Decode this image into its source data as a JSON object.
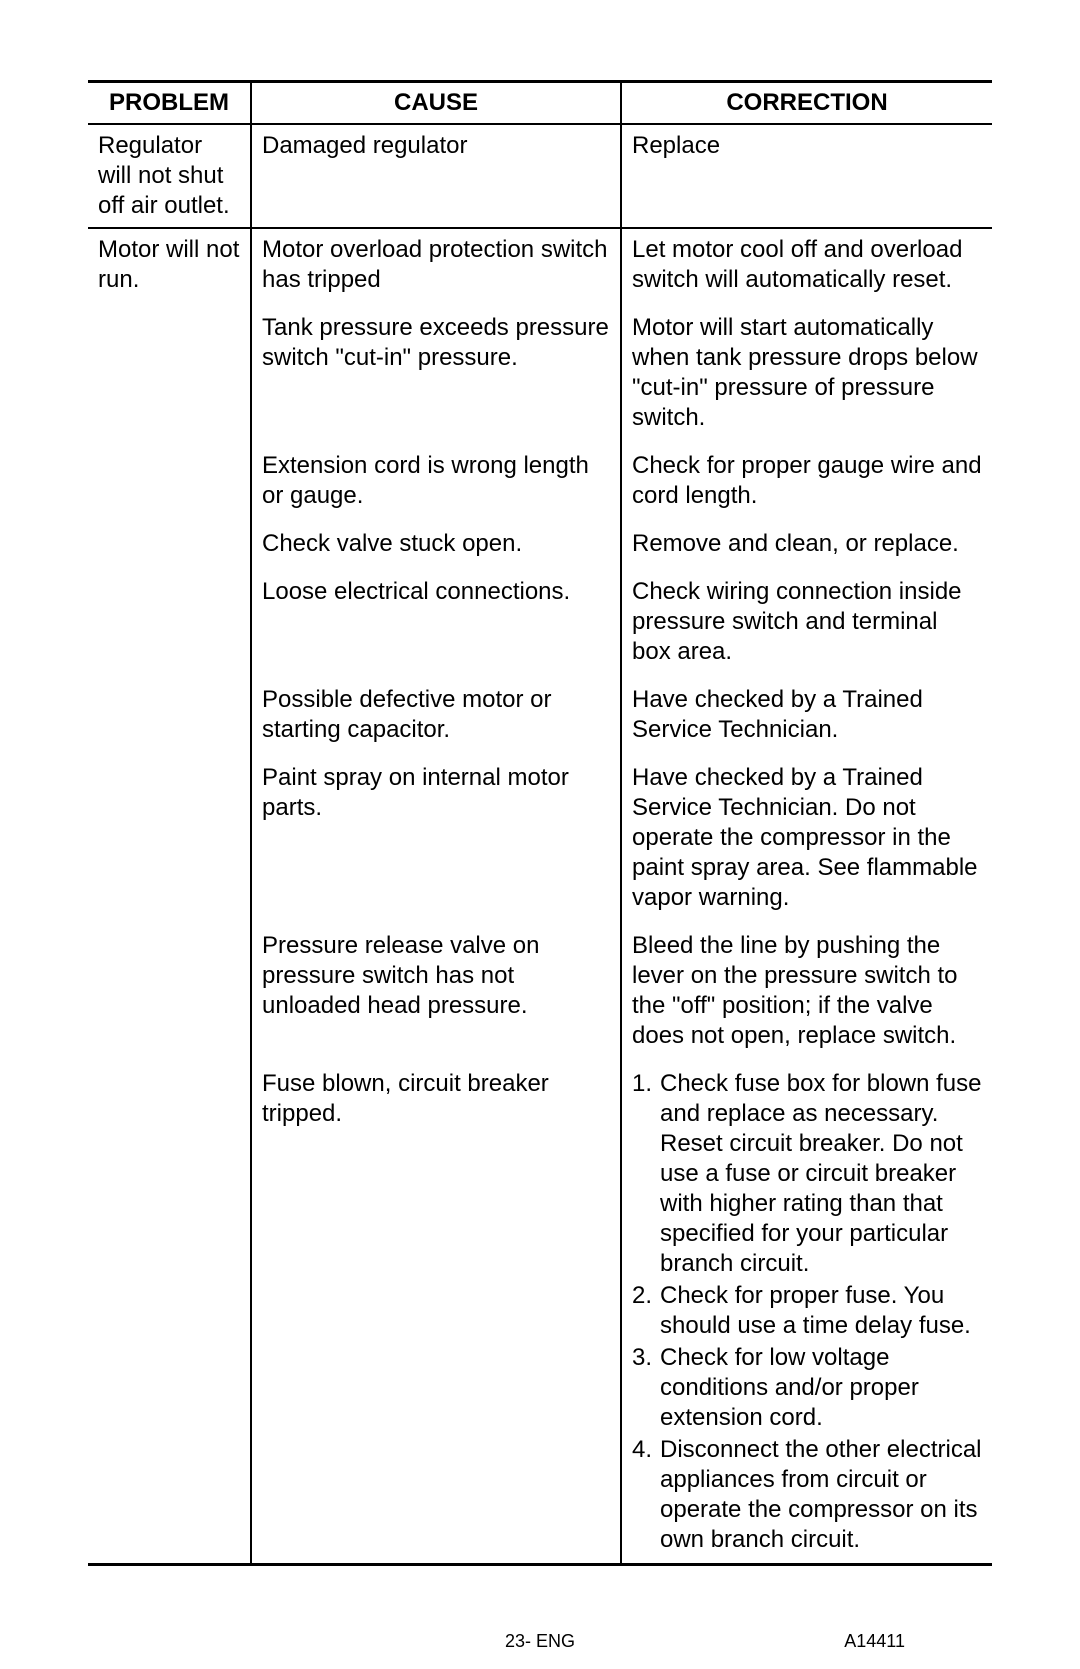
{
  "table": {
    "headers": {
      "problem": "PROBLEM",
      "cause": "CAUSE",
      "correction": "CORRECTION"
    },
    "columns": {
      "problem_width": 163,
      "cause_width": 370
    },
    "rows": [
      {
        "problem": "Regulator will not shut off air outlet.",
        "entries": [
          {
            "cause": "Damaged regulator",
            "correction": "Replace"
          }
        ],
        "bottom_rule": true
      },
      {
        "problem": "Motor will not run.",
        "entries": [
          {
            "cause": "Motor overload protection switch has tripped",
            "correction": "Let motor cool off and overload switch will automatically reset."
          },
          {
            "cause": "Tank pressure exceeds pressure switch \"cut-in\" pressure.",
            "correction": "Motor will start automatically when tank pressure drops below \"cut-in\" pressure of pressure switch."
          },
          {
            "cause": "Extension cord is wrong length or gauge.",
            "correction": "Check for proper gauge wire and cord length."
          },
          {
            "cause": "Check valve stuck open.",
            "correction": "Remove and clean, or replace."
          },
          {
            "cause": "Loose electrical connections.",
            "correction": "Check wiring connection inside pressure switch and terminal box area."
          },
          {
            "cause": "Possible defective motor or starting capacitor.",
            "correction": "Have checked by a Trained Service Technician."
          },
          {
            "cause": "Paint spray on internal motor parts.",
            "correction": "Have checked by a Trained Service Technician.  Do not operate the compressor in the paint spray area.  See flammable vapor warning."
          },
          {
            "cause": "Pressure release valve on pressure switch has not unloaded head pressure.",
            "correction": "Bleed the line by pushing the lever on the pressure switch to the \"off\" position; if the valve does not open, replace switch."
          },
          {
            "cause": "Fuse blown, circuit breaker tripped.",
            "correction_list": [
              "Check fuse box for blown fuse and replace as necessary. Reset circuit breaker. Do not use a fuse or circuit breaker with higher rating than that specified for your particular branch circuit.",
              "Check for proper fuse. You should use a time delay fuse.",
              "Check for low voltage conditions and/or proper extension cord.",
              "Disconnect the other electrical appliances from circuit or operate the compressor on its own branch circuit."
            ]
          }
        ],
        "bottom_rule": false
      }
    ]
  },
  "footer": {
    "center": "23- ENG",
    "right": "A14411"
  },
  "style": {
    "body_font_size": 24,
    "header_font_size": 24,
    "footer_font_size": 18,
    "rule_thick": 3,
    "rule_thin": 2,
    "text_color": "#000000",
    "background_color": "#ffffff"
  }
}
